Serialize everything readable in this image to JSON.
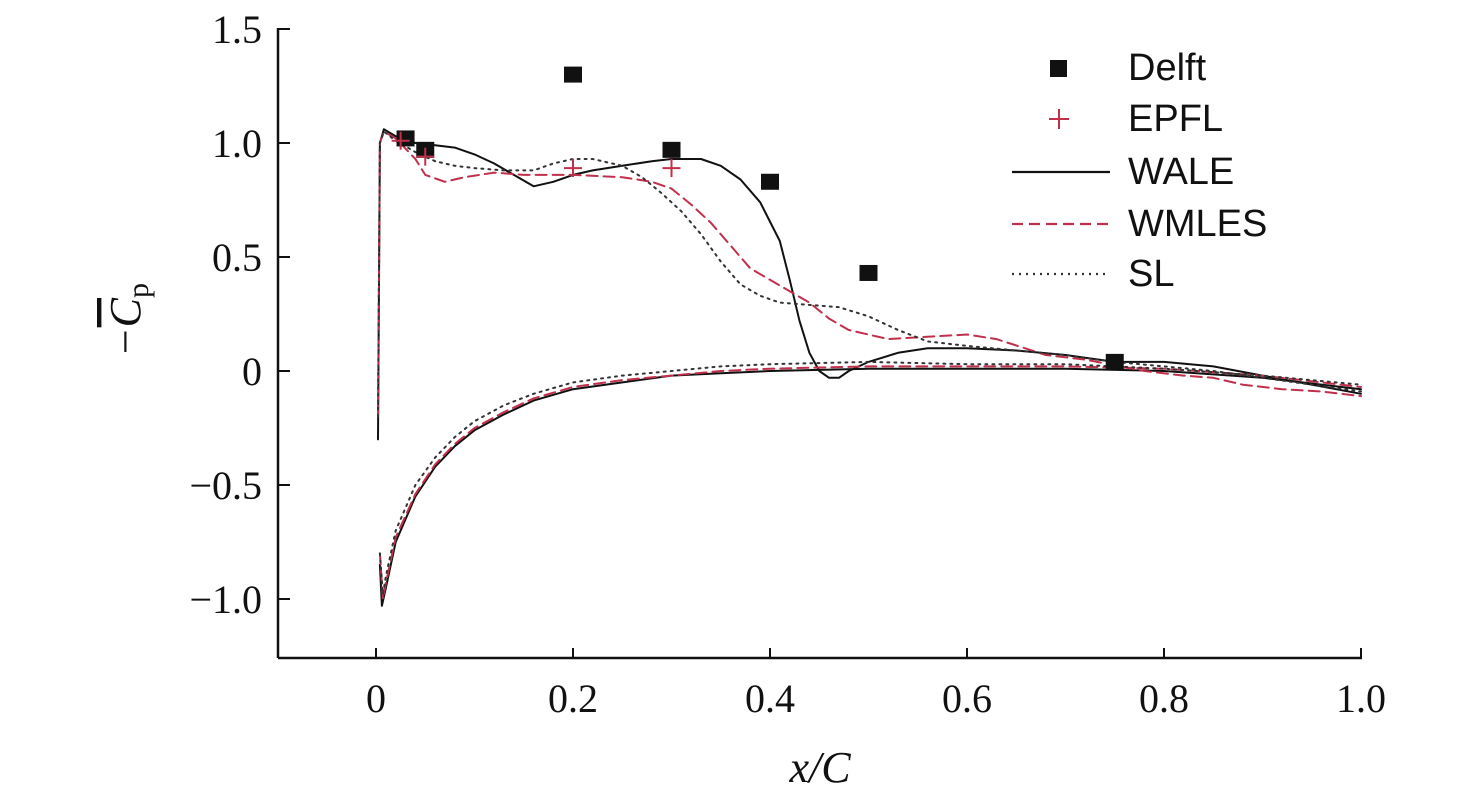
{
  "chart_data": {
    "type": "line",
    "xlabel": "x/C",
    "ylabel": "−C̄p",
    "xlim": [
      -0.1,
      1.0
    ],
    "ylim": [
      -1.25,
      1.5
    ],
    "x_ticks": [
      0,
      0.2,
      0.4,
      0.6,
      0.8,
      1.0
    ],
    "x_tick_labels": [
      "0",
      "0.2",
      "0.4",
      "0.6",
      "0.8",
      "1.0"
    ],
    "y_ticks": [
      1.5,
      1.0,
      0.5,
      0,
      -0.5,
      -1.0
    ],
    "y_tick_labels": [
      "1.5",
      "1.0",
      "0.5",
      "0",
      "−0.5",
      "−1.0"
    ],
    "grid": false,
    "legend_position": "top-right",
    "colors": {
      "black": "#111111",
      "red": "#c0304a",
      "dark": "#333333"
    },
    "series": [
      {
        "name": "Delft",
        "style": "square-marker",
        "points": [
          [
            0.03,
            1.02
          ],
          [
            0.05,
            0.97
          ],
          [
            0.2,
            1.3
          ],
          [
            0.3,
            0.97
          ],
          [
            0.4,
            0.83
          ],
          [
            0.5,
            0.43
          ],
          [
            0.75,
            0.04
          ]
        ]
      },
      {
        "name": "EPFL",
        "style": "plus-marker",
        "points": [
          [
            0.025,
            1.01
          ],
          [
            0.05,
            0.94
          ],
          [
            0.2,
            0.89
          ],
          [
            0.3,
            0.89
          ]
        ]
      },
      {
        "name": "WALE",
        "style": "solid",
        "upper": [
          [
            0.002,
            -0.3
          ],
          [
            0.004,
            1.0
          ],
          [
            0.008,
            1.06
          ],
          [
            0.02,
            1.03
          ],
          [
            0.04,
            1.0
          ],
          [
            0.06,
            0.99
          ],
          [
            0.08,
            0.98
          ],
          [
            0.1,
            0.95
          ],
          [
            0.12,
            0.91
          ],
          [
            0.14,
            0.86
          ],
          [
            0.16,
            0.81
          ],
          [
            0.18,
            0.83
          ],
          [
            0.2,
            0.86
          ],
          [
            0.22,
            0.88
          ],
          [
            0.25,
            0.9
          ],
          [
            0.28,
            0.92
          ],
          [
            0.3,
            0.93
          ],
          [
            0.33,
            0.93
          ],
          [
            0.35,
            0.9
          ],
          [
            0.37,
            0.84
          ],
          [
            0.39,
            0.74
          ],
          [
            0.41,
            0.57
          ],
          [
            0.42,
            0.4
          ],
          [
            0.43,
            0.22
          ],
          [
            0.44,
            0.08
          ],
          [
            0.45,
            0.0
          ],
          [
            0.46,
            -0.03
          ],
          [
            0.47,
            -0.03
          ],
          [
            0.48,
            0.0
          ],
          [
            0.5,
            0.04
          ],
          [
            0.53,
            0.08
          ],
          [
            0.56,
            0.1
          ],
          [
            0.6,
            0.1
          ],
          [
            0.65,
            0.09
          ],
          [
            0.7,
            0.07
          ],
          [
            0.75,
            0.04
          ],
          [
            0.8,
            0.04
          ],
          [
            0.85,
            0.02
          ],
          [
            0.9,
            -0.02
          ],
          [
            0.95,
            -0.06
          ],
          [
            1.0,
            -0.1
          ]
        ],
        "lower": [
          [
            0.004,
            -0.85
          ],
          [
            0.006,
            -1.03
          ],
          [
            0.01,
            -0.95
          ],
          [
            0.02,
            -0.75
          ],
          [
            0.04,
            -0.55
          ],
          [
            0.06,
            -0.42
          ],
          [
            0.08,
            -0.33
          ],
          [
            0.1,
            -0.26
          ],
          [
            0.13,
            -0.19
          ],
          [
            0.16,
            -0.13
          ],
          [
            0.2,
            -0.08
          ],
          [
            0.25,
            -0.05
          ],
          [
            0.3,
            -0.02
          ],
          [
            0.35,
            -0.01
          ],
          [
            0.4,
            0.0
          ],
          [
            0.5,
            0.01
          ],
          [
            0.6,
            0.01
          ],
          [
            0.7,
            0.01
          ],
          [
            0.8,
            0.0
          ],
          [
            0.9,
            -0.03
          ],
          [
            1.0,
            -0.08
          ]
        ]
      },
      {
        "name": "WMLES",
        "style": "dashed",
        "upper": [
          [
            0.002,
            -0.2
          ],
          [
            0.004,
            1.0
          ],
          [
            0.008,
            1.05
          ],
          [
            0.02,
            1.02
          ],
          [
            0.04,
            0.93
          ],
          [
            0.05,
            0.86
          ],
          [
            0.07,
            0.83
          ],
          [
            0.09,
            0.85
          ],
          [
            0.12,
            0.87
          ],
          [
            0.15,
            0.86
          ],
          [
            0.2,
            0.86
          ],
          [
            0.25,
            0.85
          ],
          [
            0.28,
            0.83
          ],
          [
            0.3,
            0.8
          ],
          [
            0.32,
            0.73
          ],
          [
            0.34,
            0.65
          ],
          [
            0.36,
            0.55
          ],
          [
            0.38,
            0.45
          ],
          [
            0.4,
            0.4
          ],
          [
            0.42,
            0.35
          ],
          [
            0.44,
            0.3
          ],
          [
            0.46,
            0.23
          ],
          [
            0.48,
            0.18
          ],
          [
            0.52,
            0.14
          ],
          [
            0.56,
            0.15
          ],
          [
            0.6,
            0.16
          ],
          [
            0.63,
            0.14
          ],
          [
            0.68,
            0.07
          ],
          [
            0.72,
            0.05
          ],
          [
            0.78,
            0.0
          ],
          [
            0.82,
            -0.02
          ],
          [
            0.85,
            -0.03
          ],
          [
            0.88,
            -0.06
          ],
          [
            0.92,
            -0.08
          ],
          [
            0.96,
            -0.09
          ],
          [
            1.0,
            -0.11
          ]
        ],
        "lower": [
          [
            0.004,
            -0.8
          ],
          [
            0.007,
            -1.0
          ],
          [
            0.01,
            -0.93
          ],
          [
            0.02,
            -0.73
          ],
          [
            0.04,
            -0.54
          ],
          [
            0.06,
            -0.41
          ],
          [
            0.08,
            -0.32
          ],
          [
            0.1,
            -0.25
          ],
          [
            0.13,
            -0.18
          ],
          [
            0.16,
            -0.12
          ],
          [
            0.2,
            -0.07
          ],
          [
            0.25,
            -0.04
          ],
          [
            0.3,
            -0.02
          ],
          [
            0.35,
            0.0
          ],
          [
            0.4,
            0.01
          ],
          [
            0.5,
            0.02
          ],
          [
            0.6,
            0.02
          ],
          [
            0.7,
            0.02
          ],
          [
            0.8,
            0.01
          ],
          [
            0.9,
            -0.02
          ],
          [
            1.0,
            -0.07
          ]
        ]
      },
      {
        "name": "SL",
        "style": "dotted",
        "upper": [
          [
            0.002,
            -0.2
          ],
          [
            0.004,
            1.0
          ],
          [
            0.008,
            1.05
          ],
          [
            0.02,
            1.01
          ],
          [
            0.04,
            0.96
          ],
          [
            0.06,
            0.92
          ],
          [
            0.08,
            0.9
          ],
          [
            0.1,
            0.89
          ],
          [
            0.13,
            0.88
          ],
          [
            0.16,
            0.88
          ],
          [
            0.18,
            0.91
          ],
          [
            0.2,
            0.93
          ],
          [
            0.22,
            0.93
          ],
          [
            0.25,
            0.9
          ],
          [
            0.27,
            0.85
          ],
          [
            0.29,
            0.78
          ],
          [
            0.31,
            0.7
          ],
          [
            0.33,
            0.6
          ],
          [
            0.35,
            0.48
          ],
          [
            0.37,
            0.38
          ],
          [
            0.39,
            0.33
          ],
          [
            0.41,
            0.3
          ],
          [
            0.44,
            0.29
          ],
          [
            0.47,
            0.28
          ],
          [
            0.5,
            0.24
          ],
          [
            0.53,
            0.18
          ],
          [
            0.56,
            0.13
          ],
          [
            0.6,
            0.11
          ],
          [
            0.65,
            0.09
          ],
          [
            0.7,
            0.07
          ],
          [
            0.75,
            0.04
          ],
          [
            0.8,
            0.02
          ],
          [
            0.85,
            0.0
          ],
          [
            0.9,
            -0.03
          ],
          [
            0.95,
            -0.06
          ],
          [
            1.0,
            -0.09
          ]
        ],
        "lower": [
          [
            0.004,
            -0.8
          ],
          [
            0.007,
            -0.98
          ],
          [
            0.01,
            -0.9
          ],
          [
            0.02,
            -0.7
          ],
          [
            0.04,
            -0.5
          ],
          [
            0.06,
            -0.38
          ],
          [
            0.08,
            -0.29
          ],
          [
            0.1,
            -0.22
          ],
          [
            0.13,
            -0.15
          ],
          [
            0.16,
            -0.1
          ],
          [
            0.2,
            -0.05
          ],
          [
            0.25,
            -0.02
          ],
          [
            0.3,
            0.0
          ],
          [
            0.35,
            0.02
          ],
          [
            0.4,
            0.03
          ],
          [
            0.5,
            0.04
          ],
          [
            0.6,
            0.03
          ],
          [
            0.7,
            0.03
          ],
          [
            0.8,
            0.01
          ],
          [
            0.9,
            -0.02
          ],
          [
            1.0,
            -0.06
          ]
        ]
      }
    ]
  }
}
